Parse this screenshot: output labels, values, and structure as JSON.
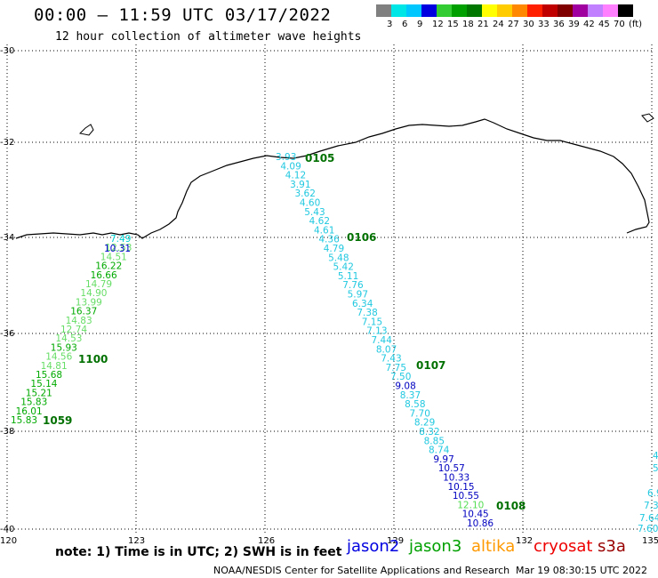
{
  "title": "00:00 – 11:59 UTC 03/17/2022",
  "subtitle": "12 hour collection of altimeter wave heights",
  "legend": {
    "colors": [
      "#808080",
      "#00e5e5",
      "#00c8ff",
      "#0000e0",
      "#33cc33",
      "#00a000",
      "#007800",
      "#ffff00",
      "#ffcc00",
      "#ff8800",
      "#ff2000",
      "#c00000",
      "#800000",
      "#a000a0",
      "#c080ff",
      "#ff80ff",
      "#000000"
    ],
    "values": [
      "3",
      "6",
      "9",
      "12",
      "15",
      "18",
      "21",
      "24",
      "27",
      "30",
      "33",
      "36",
      "39",
      "42",
      "45",
      "70"
    ],
    "unit": "(ft)"
  },
  "axes": {
    "lat_labels": [
      "-30",
      "-32",
      "-34",
      "-36",
      "-38",
      "-40"
    ],
    "lon_labels": [
      "120",
      "123",
      "126",
      "129",
      "132",
      "135"
    ]
  },
  "tracks": {
    "jason3_west": {
      "color": "#00b000",
      "values": [
        "7.49",
        "12.53",
        "14.51",
        "16.22",
        "16.66",
        "14.79",
        "14.90",
        "13.99",
        "16.37",
        "14.83",
        "12.74",
        "14.53",
        "15.93",
        "14.56",
        "14.81",
        "15.68",
        "15.14",
        "15.21",
        "15.83",
        "16.01",
        "15.83"
      ],
      "time_labels": [
        "1100",
        "1059"
      ]
    },
    "jason2_west": {
      "color": "#0000d0",
      "values": [
        "10.31"
      ]
    },
    "east_track": {
      "values": [
        "3.93",
        "4.09",
        "4.12",
        "3.91",
        "3.62",
        "4.60",
        "5.43",
        "4.62",
        "4.61",
        "4.36",
        "4.79",
        "5.48",
        "5.42",
        "5.11",
        "7.76",
        "5.97",
        "6.34",
        "7.38",
        "7.15",
        "7.13",
        "7.44",
        "8.07",
        "7.43",
        "7.75",
        "7.50",
        "9.08",
        "8.37",
        "8.58",
        "7.70",
        "8.29",
        "8.32",
        "8.85",
        "8.74",
        "9.97",
        "10.57",
        "10.33",
        "10.15",
        "10.55",
        "12.10",
        "10.45",
        "10.86"
      ],
      "time_labels": [
        "0105",
        "0106",
        "0107",
        "0108"
      ]
    },
    "edge_values": [
      "4",
      "5.",
      "6.9",
      "7.3",
      "7.64",
      "7.60"
    ]
  },
  "note": "note: 1) Time is in UTC; 2) SWH is in feet",
  "satellites": [
    {
      "name": "jason2",
      "color": "#0000e0"
    },
    {
      "name": "jason3",
      "color": "#00a000"
    },
    {
      "name": "altika",
      "color": "#ff9900"
    },
    {
      "name": "cryosat",
      "color": "#ee0000"
    },
    {
      "name": "s3a",
      "color": "#990000"
    }
  ],
  "footer": {
    "agency": "NOAA/NESDIS Center for Satellite Applications and Research",
    "timestamp": "Mar 19 08:30:15 UTC 2022"
  }
}
